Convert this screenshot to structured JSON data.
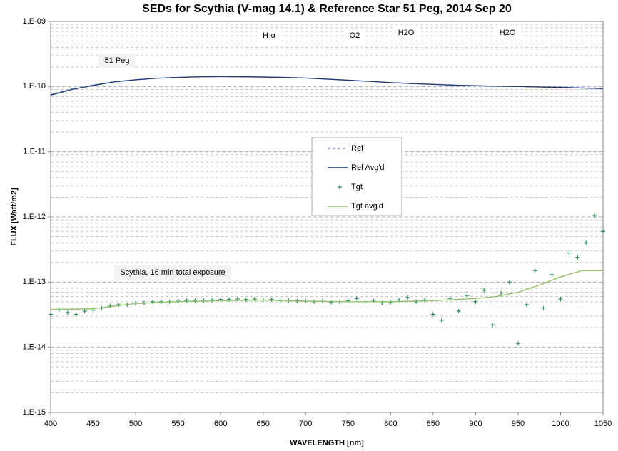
{
  "chart_data": {
    "type": "line",
    "title": "SEDs for Scythia (V-mag 14.1) & Reference Star 51 Peg, 2014 Sep 20",
    "xlabel": "WAVELENGTH [nm]",
    "ylabel": "FLUX [Watt/m2]",
    "xlim": [
      400,
      1050
    ],
    "xticks": [
      400,
      450,
      500,
      550,
      600,
      650,
      700,
      750,
      800,
      850,
      900,
      950,
      1000,
      1050
    ],
    "ylim": [
      1e-15,
      1e-09
    ],
    "yticks": [
      {
        "value": 1e-15,
        "label": "1.E-15"
      },
      {
        "value": 1e-14,
        "label": "1.E-14"
      },
      {
        "value": 1e-13,
        "label": "1.E-13"
      },
      {
        "value": 1e-12,
        "label": "1.E-12"
      },
      {
        "value": 1e-11,
        "label": "1.E-11"
      },
      {
        "value": 1e-10,
        "label": "1.E-10"
      },
      {
        "value": 1e-09,
        "label": "1.E-09"
      }
    ],
    "log_y": true,
    "grid": true,
    "minor_grid": true,
    "legend": "center",
    "annotations": [
      "H-α",
      "O2",
      "H2O",
      "H2O",
      "51 Peg",
      "Scythia, 16 min total exposure"
    ],
    "series": [
      {
        "name": "Ref",
        "color": "#7f9ccc",
        "style": "dashed",
        "x": [
          400,
          425,
          450,
          475,
          500,
          525,
          550,
          575,
          600,
          625,
          650,
          675,
          700,
          725,
          750,
          775,
          800,
          825,
          850,
          875,
          900,
          925,
          950,
          975,
          1000,
          1025,
          1050
        ],
        "values": [
          7.6e-11,
          9.2e-11,
          1.06e-10,
          1.19e-10,
          1.28e-10,
          1.34e-10,
          1.38e-10,
          1.41e-10,
          1.42e-10,
          1.41e-10,
          1.4e-10,
          1.38e-10,
          1.35e-10,
          1.3e-10,
          1.25e-10,
          1.2e-10,
          1.15e-10,
          1.11e-10,
          1.08e-10,
          1.05e-10,
          1.03e-10,
          1.01e-10,
          1e-10,
          9.8e-11,
          9.7e-11,
          9.5e-11,
          9.3e-11
        ]
      },
      {
        "name": "Ref Avg'd",
        "color": "#1f3a7a",
        "style": "solid",
        "x": [
          400,
          425,
          450,
          475,
          500,
          525,
          550,
          575,
          600,
          625,
          650,
          675,
          700,
          725,
          750,
          775,
          800,
          825,
          850,
          875,
          900,
          925,
          950,
          975,
          1000,
          1025,
          1050
        ],
        "values": [
          7.4e-11,
          9e-11,
          1.04e-10,
          1.18e-10,
          1.27e-10,
          1.34e-10,
          1.38e-10,
          1.41e-10,
          1.42e-10,
          1.41e-10,
          1.4e-10,
          1.38e-10,
          1.35e-10,
          1.3e-10,
          1.25e-10,
          1.2e-10,
          1.15e-10,
          1.11e-10,
          1.08e-10,
          1.05e-10,
          1.03e-10,
          1.01e-10,
          1e-10,
          9.8e-11,
          9.7e-11,
          9.5e-11,
          9.3e-11
        ]
      },
      {
        "name": "Tgt",
        "color": "#2e8b57",
        "style": "marker",
        "x": [
          400,
          410,
          420,
          430,
          440,
          450,
          460,
          470,
          480,
          490,
          500,
          510,
          520,
          530,
          540,
          550,
          560,
          570,
          580,
          590,
          600,
          610,
          620,
          630,
          640,
          650,
          660,
          670,
          680,
          690,
          700,
          710,
          720,
          730,
          740,
          750,
          760,
          770,
          780,
          790,
          800,
          810,
          820,
          830,
          840,
          850,
          860,
          870,
          880,
          890,
          900,
          910,
          920,
          930,
          940,
          950,
          960,
          970,
          980,
          990,
          1000,
          1010,
          1020,
          1030,
          1040,
          1050
        ],
        "values": [
          3.2e-14,
          3.8e-14,
          3.4e-14,
          3.2e-14,
          3.6e-14,
          3.7e-14,
          4e-14,
          4.3e-14,
          4.5e-14,
          4.5e-14,
          4.7e-14,
          4.8e-14,
          5e-14,
          5e-14,
          5e-14,
          5.1e-14,
          5.2e-14,
          5.2e-14,
          5.2e-14,
          5.3e-14,
          5.4e-14,
          5.4e-14,
          5.5e-14,
          5.4e-14,
          5.5e-14,
          5.3e-14,
          5.4e-14,
          5.2e-14,
          5.2e-14,
          5.1e-14,
          5.1e-14,
          5e-14,
          5.1e-14,
          4.9e-14,
          5e-14,
          5.2e-14,
          5.6e-14,
          5e-14,
          5.1e-14,
          4.8e-14,
          4.9e-14,
          5.3e-14,
          5.8e-14,
          5e-14,
          5.3e-14,
          3.2e-14,
          2.6e-14,
          5.6e-14,
          3.6e-14,
          6.2e-14,
          5e-14,
          7.5e-14,
          2.2e-14,
          6.8e-14,
          1e-13,
          1.15e-14,
          4.5e-14,
          1.5e-13,
          4e-14,
          1.3e-13,
          5.5e-14,
          2.8e-13,
          2.4e-13,
          4e-13,
          1.05e-12,
          6e-13
        ]
      },
      {
        "name": "Tgt avg'd",
        "color": "#92c36b",
        "style": "solid",
        "x": [
          400,
          450,
          500,
          550,
          600,
          650,
          700,
          750,
          800,
          850,
          900,
          925,
          950,
          975,
          1000,
          1025,
          1050
        ],
        "values": [
          3.8e-14,
          3.9e-14,
          4.7e-14,
          5e-14,
          5.2e-14,
          5.3e-14,
          5.1e-14,
          5e-14,
          5e-14,
          5.2e-14,
          5.6e-14,
          6e-14,
          7e-14,
          9e-14,
          1.2e-13,
          1.5e-13,
          1.5e-13
        ]
      }
    ]
  }
}
